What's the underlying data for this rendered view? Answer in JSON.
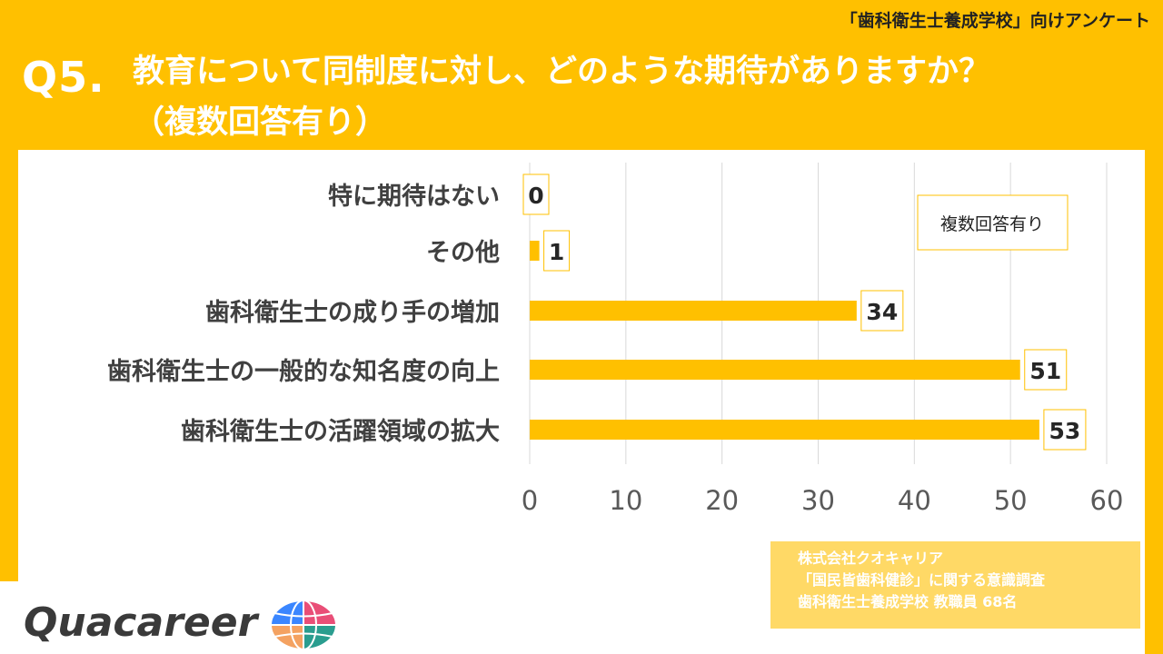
{
  "header": {
    "survey_tag": "「歯科衛生士養成学校」向けアンケート",
    "question_number": "Q5.",
    "question_text": "教育について同制度に対し、どのような期待がありますか？",
    "question_note": "（複数回答有り）"
  },
  "chart_data": {
    "type": "bar",
    "orientation": "horizontal",
    "categories": [
      "特に期待はない",
      "その他",
      "歯科衛生士の成り手の増加",
      "歯科衛生士の一般的な知名度の向上",
      "歯科衛生士の活躍領域の拡大"
    ],
    "values": [
      0,
      1,
      34,
      51,
      53
    ],
    "xlim": [
      0,
      60
    ],
    "xticks": [
      0,
      10,
      20,
      30,
      40,
      50,
      60
    ],
    "grid": true,
    "bar_color": "#FFC000",
    "annotation": "複数回答有り"
  },
  "source": {
    "company": "株式会社クオキャリア",
    "survey": "「国民皆歯科健診」に関する意識調査",
    "respondents": "歯科衛生士養成学校 教職員 68名"
  },
  "brand": {
    "logo_text": "Quacareer",
    "logo_icon": "globe-logo-icon"
  },
  "colors": {
    "background": "#FFC000",
    "bar": "#FFC000",
    "source_box": "#FFD966",
    "text_dark": "#404040"
  }
}
